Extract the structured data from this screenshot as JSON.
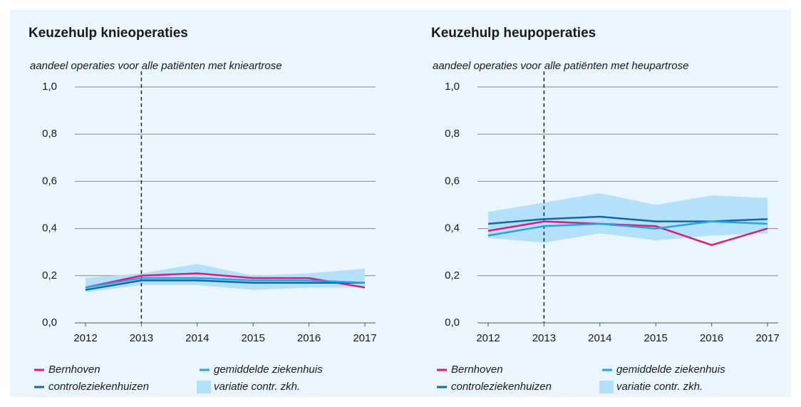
{
  "chart_data": [
    {
      "type": "line",
      "title": "Keuzehulp knieoperaties",
      "subtitle": "aandeel operaties voor alle patiënten met knieartrose",
      "x": [
        2012,
        2013,
        2014,
        2015,
        2016,
        2017
      ],
      "xlim": [
        2012,
        2017
      ],
      "xticks": [
        2012,
        2013,
        2014,
        2015,
        2016,
        2017
      ],
      "ylim": [
        0,
        1
      ],
      "yticks": [
        {
          "value": 0,
          "label": "0,0"
        },
        {
          "value": 0.2,
          "label": "0,2"
        },
        {
          "value": 0.4,
          "label": "0,4"
        },
        {
          "value": 0.6,
          "label": "0,6"
        },
        {
          "value": 0.8,
          "label": "0,8"
        },
        {
          "value": 1,
          "label": "1,0"
        }
      ],
      "grid": true,
      "vline": 2013,
      "series": [
        {
          "name": "Bernhoven",
          "color": "#e0197d",
          "values": [
            0.15,
            0.2,
            0.21,
            0.19,
            0.19,
            0.15
          ]
        },
        {
          "name": "controleziekenhuizen",
          "color": "#1565a8",
          "values": [
            0.14,
            0.18,
            0.18,
            0.17,
            0.17,
            0.17
          ]
        },
        {
          "name": "gemiddelde ziekenhuis",
          "color": "#1fa6e8",
          "values": [
            0.15,
            0.19,
            0.19,
            0.18,
            0.18,
            0.17
          ]
        },
        {
          "name": "variatie contr. zkh.",
          "color": "#b3e0fa",
          "lower": [
            0.13,
            0.16,
            0.16,
            0.14,
            0.15,
            0.15
          ],
          "upper": [
            0.19,
            0.21,
            0.25,
            0.2,
            0.21,
            0.23
          ]
        }
      ]
    },
    {
      "type": "line",
      "title": "Keuzehulp heupoperaties",
      "subtitle": "aandeel operaties voor alle patiënten met heupartrose",
      "x": [
        2012,
        2013,
        2014,
        2015,
        2016,
        2017
      ],
      "xlim": [
        2012,
        2017
      ],
      "xticks": [
        2012,
        2013,
        2014,
        2015,
        2016,
        2017
      ],
      "ylim": [
        0,
        1
      ],
      "yticks": [
        {
          "value": 0,
          "label": "0,0"
        },
        {
          "value": 0.2,
          "label": "0,2"
        },
        {
          "value": 0.4,
          "label": "0,4"
        },
        {
          "value": 0.6,
          "label": "0,6"
        },
        {
          "value": 0.8,
          "label": "0,8"
        },
        {
          "value": 1,
          "label": "1,0"
        }
      ],
      "grid": true,
      "vline": 2013,
      "series": [
        {
          "name": "Bernhoven",
          "color": "#e0197d",
          "values": [
            0.39,
            0.43,
            0.42,
            0.41,
            0.33,
            0.4
          ]
        },
        {
          "name": "controleziekenhuizen",
          "color": "#1565a8",
          "values": [
            0.42,
            0.44,
            0.45,
            0.43,
            0.43,
            0.44
          ]
        },
        {
          "name": "gemiddelde ziekenhuis",
          "color": "#1fa6e8",
          "values": [
            0.37,
            0.41,
            0.42,
            0.4,
            0.43,
            0.42
          ]
        },
        {
          "name": "variatie contr. zkh.",
          "color": "#b3e0fa",
          "lower": [
            0.36,
            0.34,
            0.38,
            0.35,
            0.37,
            0.38
          ],
          "upper": [
            0.47,
            0.51,
            0.55,
            0.5,
            0.54,
            0.53
          ]
        }
      ]
    }
  ]
}
